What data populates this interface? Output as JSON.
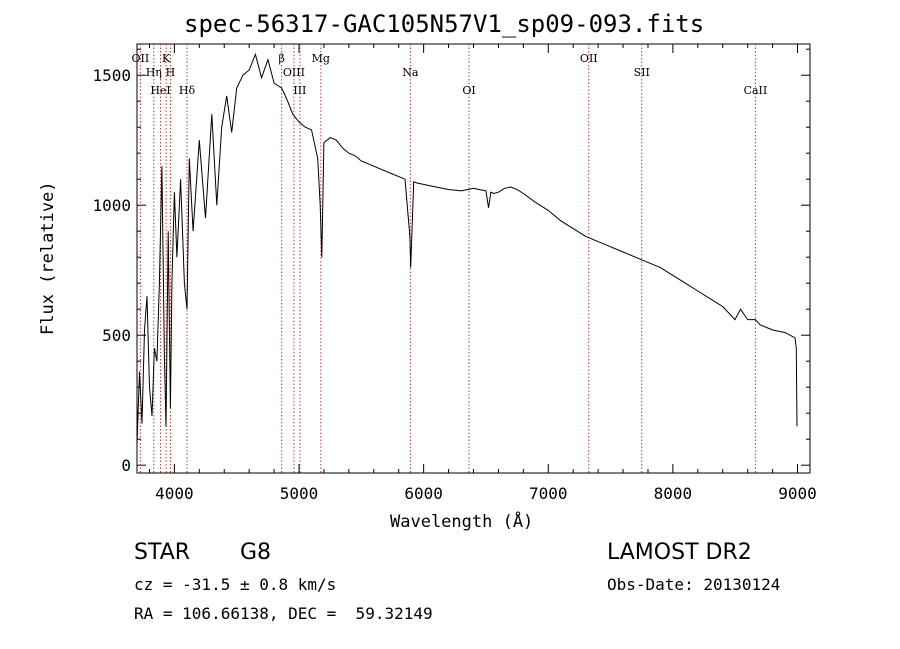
{
  "chart_data": {
    "type": "line",
    "title": "spec-56317-GAC105N57V1_sp09-093.fits",
    "xlabel": "Wavelength (Å)",
    "ylabel": "Flux (relative)",
    "xlim": [
      3700,
      9100
    ],
    "ylim": [
      -30,
      1620
    ],
    "x_ticks": [
      4000,
      5000,
      6000,
      7000,
      8000,
      9000
    ],
    "y_ticks": [
      0,
      500,
      1000,
      1500
    ],
    "series": [
      {
        "color": "#000000",
        "x": [
          3700,
          3720,
          3740,
          3760,
          3780,
          3800,
          3820,
          3840,
          3860,
          3880,
          3900,
          3920,
          3933,
          3950,
          3968,
          3980,
          4000,
          4020,
          4050,
          4080,
          4101,
          4120,
          4150,
          4200,
          4250,
          4300,
          4340,
          4380,
          4420,
          4460,
          4500,
          4550,
          4600,
          4650,
          4700,
          4750,
          4800,
          4861,
          4900,
          4950,
          5000,
          5050,
          5100,
          5150,
          5170,
          5183,
          5200,
          5250,
          5300,
          5350,
          5400,
          5450,
          5500,
          5550,
          5600,
          5650,
          5700,
          5750,
          5800,
          5850,
          5890,
          5896,
          5920,
          5950,
          6000,
          6050,
          6100,
          6150,
          6200,
          6250,
          6300,
          6350,
          6400,
          6450,
          6500,
          6520,
          6540,
          6563,
          6600,
          6650,
          6700,
          6750,
          6800,
          6900,
          7000,
          7100,
          7200,
          7300,
          7400,
          7500,
          7600,
          7700,
          7800,
          7900,
          8000,
          8100,
          8200,
          8300,
          8400,
          8498,
          8542,
          8600,
          8662,
          8700,
          8800,
          8900,
          8980,
          8990,
          8996
        ],
        "y": [
          80,
          360,
          160,
          520,
          650,
          300,
          190,
          450,
          400,
          700,
          1150,
          420,
          150,
          900,
          220,
          700,
          1050,
          800,
          1100,
          700,
          600,
          1180,
          900,
          1250,
          950,
          1350,
          1000,
          1300,
          1420,
          1280,
          1450,
          1500,
          1520,
          1580,
          1490,
          1560,
          1470,
          1450,
          1410,
          1350,
          1320,
          1300,
          1290,
          1180,
          1000,
          800,
          1240,
          1260,
          1250,
          1220,
          1200,
          1190,
          1170,
          1160,
          1150,
          1140,
          1130,
          1120,
          1110,
          1100,
          880,
          760,
          1090,
          1085,
          1080,
          1075,
          1070,
          1065,
          1060,
          1058,
          1055,
          1060,
          1065,
          1060,
          1055,
          990,
          1050,
          1045,
          1050,
          1065,
          1070,
          1060,
          1045,
          1010,
          980,
          940,
          910,
          880,
          860,
          840,
          820,
          800,
          780,
          760,
          730,
          700,
          670,
          640,
          610,
          560,
          600,
          560,
          560,
          540,
          520,
          510,
          490,
          450,
          150
        ]
      }
    ],
    "lines": [
      {
        "label": "OII",
        "x": 3727
      },
      {
        "label": "Hη",
        "x": 3835
      },
      {
        "label": "HeI",
        "x": 3889
      },
      {
        "label": "K",
        "x": 3934
      },
      {
        "label": "H",
        "x": 3968
      },
      {
        "label": "Hδ",
        "x": 4101
      },
      {
        "label": "β",
        "x": 4861
      },
      {
        "label": "OIII",
        "x": 4959
      },
      {
        "label": "III",
        "x": 5007
      },
      {
        "label": "Mg",
        "x": 5175
      },
      {
        "label": "Na",
        "x": 5893
      },
      {
        "label": "OI",
        "x": 6364
      },
      {
        "label": "OII",
        "x": 7325
      },
      {
        "label": "SII",
        "x": 7750
      },
      {
        "label": "CaII",
        "x": 8662
      }
    ]
  },
  "info": {
    "object_type": "STAR",
    "subclass": "G8",
    "survey": "LAMOST DR2",
    "cz": "cz = -31.5 ± 0.8 km/s",
    "obs_date": "Obs-Date: 20130124",
    "coords": "RA = 106.66138, DEC =  59.32149"
  }
}
